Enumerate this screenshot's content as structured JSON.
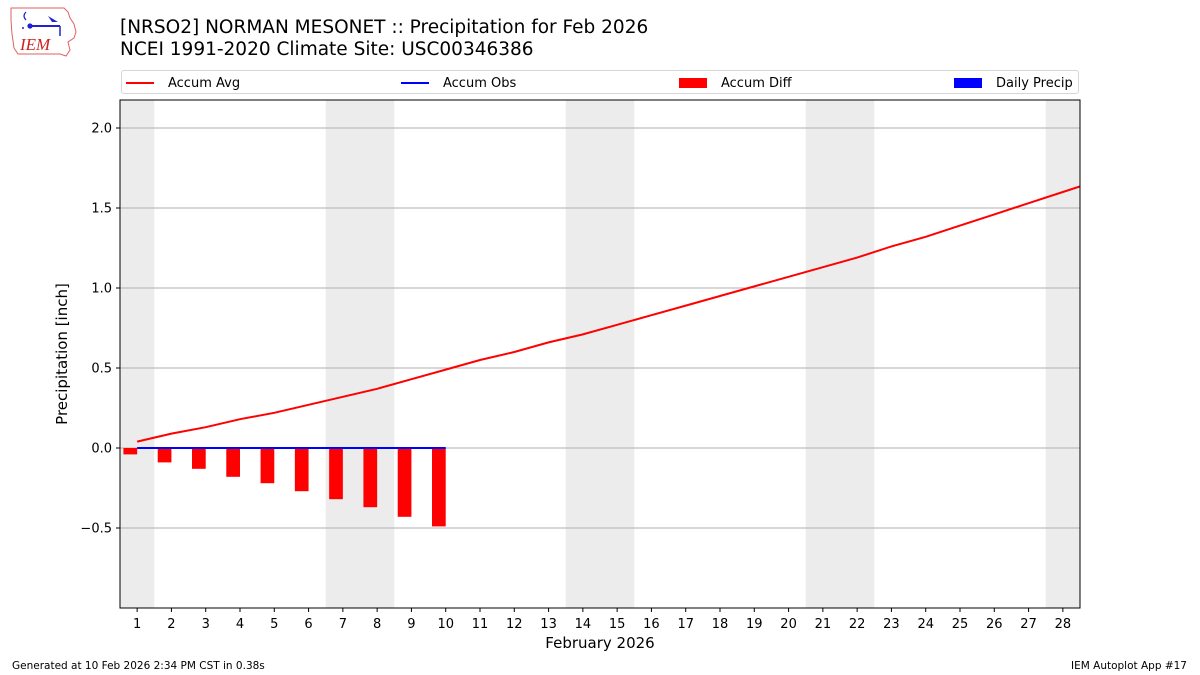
{
  "header": {
    "logo_text": "IEM",
    "title_line1": "[NRSO2] NORMAN MESONET :: Precipitation for Feb 2026",
    "title_line2": "NCEI 1991-2020 Climate Site: USC00346386"
  },
  "legend": {
    "items": [
      {
        "label": "Accum Avg",
        "kind": "line",
        "color": "#ff0000"
      },
      {
        "label": "Accum Obs",
        "kind": "line",
        "color": "#0000ff"
      },
      {
        "label": "Accum Diff",
        "kind": "patch",
        "color": "#ff0000"
      },
      {
        "label": "Daily Precip",
        "kind": "patch",
        "color": "#0000ff"
      }
    ]
  },
  "footer": {
    "left": "Generated at 10 Feb 2026 2:34 PM CST in 0.38s",
    "right": "IEM Autoplot App #17"
  },
  "colors": {
    "accum_avg": "#ff0000",
    "accum_obs": "#0000ff",
    "accum_diff": "#ff0000",
    "daily_precip": "#0000ff",
    "weekend_shade": "#ececec",
    "grid": "#b0b0b0"
  },
  "chart_data": {
    "type": "line",
    "title": "[NRSO2] NORMAN MESONET :: Precipitation for Feb 2026",
    "subtitle": "NCEI 1991-2020 Climate Site: USC00346386",
    "xlabel": "February 2026",
    "ylabel": "Precipitation [inch]",
    "xlim": [
      0.5,
      28.5
    ],
    "ylim": [
      -1.0,
      2.175
    ],
    "yticks": [
      -0.5,
      0.0,
      0.5,
      1.0,
      1.5,
      2.0
    ],
    "ytick_labels": [
      "−0.5",
      "0.0",
      "0.5",
      "1.0",
      "1.5",
      "2.0"
    ],
    "xticks": [
      1,
      2,
      3,
      4,
      5,
      6,
      7,
      8,
      9,
      10,
      11,
      12,
      13,
      14,
      15,
      16,
      17,
      18,
      19,
      20,
      21,
      22,
      23,
      24,
      25,
      26,
      27,
      28
    ],
    "grid": "y",
    "legend_position": "top",
    "weekend_spans": [
      [
        0.5,
        1.5
      ],
      [
        6.5,
        8.5
      ],
      [
        13.5,
        15.5
      ],
      [
        20.5,
        22.5
      ],
      [
        27.5,
        28.5
      ]
    ],
    "series": [
      {
        "name": "Accum Avg",
        "type": "line",
        "x": [
          1,
          2,
          3,
          4,
          5,
          6,
          7,
          8,
          9,
          10,
          11,
          12,
          13,
          14,
          15,
          16,
          17,
          18,
          19,
          20,
          21,
          22,
          23,
          24,
          25,
          26,
          27,
          28,
          29
        ],
        "values": [
          0.04,
          0.09,
          0.13,
          0.18,
          0.22,
          0.27,
          0.32,
          0.37,
          0.43,
          0.49,
          0.55,
          0.6,
          0.66,
          0.71,
          0.77,
          0.83,
          0.89,
          0.95,
          1.01,
          1.07,
          1.13,
          1.19,
          1.26,
          1.32,
          1.39,
          1.46,
          1.53,
          1.6,
          1.67
        ]
      },
      {
        "name": "Accum Obs",
        "type": "line",
        "x": [
          1,
          2,
          3,
          4,
          5,
          6,
          7,
          8,
          9,
          10
        ],
        "values": [
          0,
          0,
          0,
          0,
          0,
          0,
          0,
          0,
          0,
          0
        ]
      },
      {
        "name": "Accum Diff",
        "type": "bar",
        "x": [
          1,
          2,
          3,
          4,
          5,
          6,
          7,
          8,
          9,
          10
        ],
        "values": [
          -0.04,
          -0.09,
          -0.13,
          -0.18,
          -0.22,
          -0.27,
          -0.32,
          -0.37,
          -0.43,
          -0.49
        ]
      },
      {
        "name": "Daily Precip",
        "type": "bar",
        "x": [
          1,
          2,
          3,
          4,
          5,
          6,
          7,
          8,
          9,
          10
        ],
        "values": [
          0,
          0,
          0,
          0,
          0,
          0,
          0,
          0,
          0,
          0
        ]
      }
    ]
  }
}
